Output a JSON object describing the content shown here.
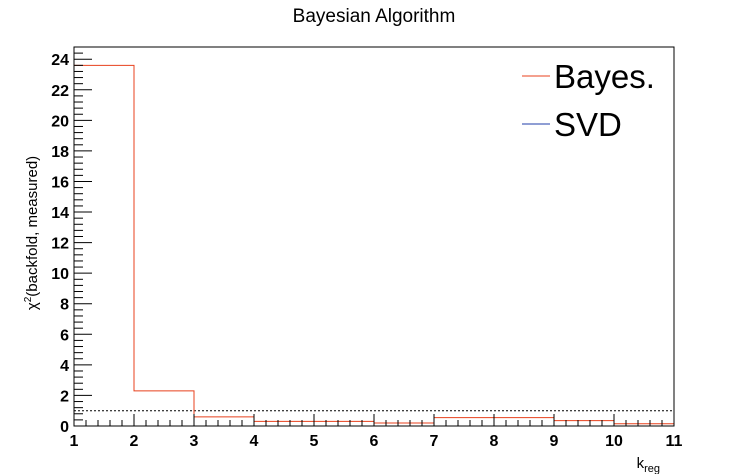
{
  "chart_data": {
    "type": "histogram",
    "title": "Bayesian Algorithm",
    "xlabel_base": "k",
    "xlabel_sub": "reg",
    "ylabel_base": "χ",
    "ylabel_sup": "2",
    "ylabel_rest": "(backfold, measured)",
    "xlim": [
      1,
      11
    ],
    "ylim": [
      0,
      24.8
    ],
    "x_ticks": [
      1,
      2,
      3,
      4,
      5,
      6,
      7,
      8,
      9,
      10,
      11
    ],
    "y_ticks": [
      0,
      2,
      4,
      6,
      8,
      10,
      12,
      14,
      16,
      18,
      20,
      22,
      24
    ],
    "bin_edges": [
      1,
      2,
      3,
      4,
      5,
      6,
      7,
      8,
      9,
      10,
      11
    ],
    "reference_line": {
      "y": 1.0,
      "style": "dotted",
      "color": "#000000"
    },
    "series": [
      {
        "name": "Bayes.",
        "color": "#e8401c",
        "values": [
          23.6,
          2.3,
          0.6,
          0.3,
          0.3,
          0.2,
          0.55,
          0.55,
          0.35,
          0.15
        ]
      },
      {
        "name": "SVD",
        "color": "#1f3ea8",
        "values": []
      }
    ],
    "legend_position": "top-right"
  }
}
